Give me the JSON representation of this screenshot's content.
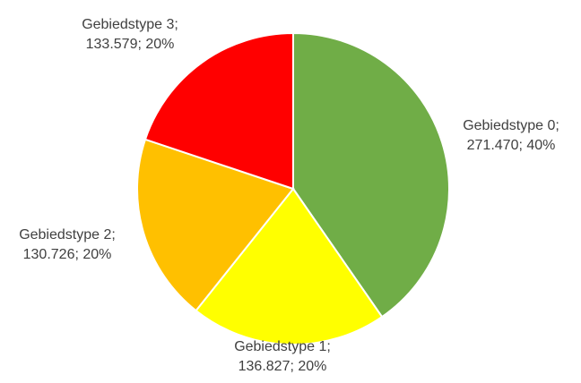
{
  "chart_data": {
    "type": "pie",
    "categories": [
      "Gebiedstype 0;",
      "Gebiedstype 1;",
      "Gebiedstype 2;",
      "Gebiedstype 3;"
    ],
    "values": [
      271470,
      136827,
      130726,
      133579
    ],
    "value_labels": [
      "271.470; 40%",
      "136.827; 20%",
      "130.726; 20%",
      "133.579; 20%"
    ],
    "colors": [
      "#70ad47",
      "#ffff00",
      "#ffc000",
      "#ff0000"
    ]
  }
}
